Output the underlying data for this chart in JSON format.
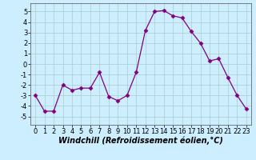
{
  "x": [
    0,
    1,
    2,
    3,
    4,
    5,
    6,
    7,
    8,
    9,
    10,
    11,
    12,
    13,
    14,
    15,
    16,
    17,
    18,
    19,
    20,
    21,
    22,
    23
  ],
  "y": [
    -3,
    -4.5,
    -4.5,
    -2,
    -2.5,
    -2.3,
    -2.3,
    -0.8,
    -3.1,
    -3.5,
    -3.0,
    -0.8,
    3.2,
    5.0,
    5.1,
    4.6,
    4.4,
    3.1,
    2.0,
    0.3,
    0.5,
    -1.3,
    -3.0,
    -4.3
  ],
  "line_color": "#800080",
  "marker": "D",
  "marker_size": 2.5,
  "bg_color": "#cceeff",
  "grid_color": "#aacccc",
  "xlabel": "Windchill (Refroidissement éolien,°C)",
  "xlabel_fontsize": 7,
  "tick_fontsize": 6,
  "ylim": [
    -5.8,
    5.8
  ],
  "xlim": [
    -0.5,
    23.5
  ],
  "yticks": [
    -5,
    -4,
    -3,
    -2,
    -1,
    0,
    1,
    2,
    3,
    4,
    5
  ],
  "xticks": [
    0,
    1,
    2,
    3,
    4,
    5,
    6,
    7,
    8,
    9,
    10,
    11,
    12,
    13,
    14,
    15,
    16,
    17,
    18,
    19,
    20,
    21,
    22,
    23
  ]
}
